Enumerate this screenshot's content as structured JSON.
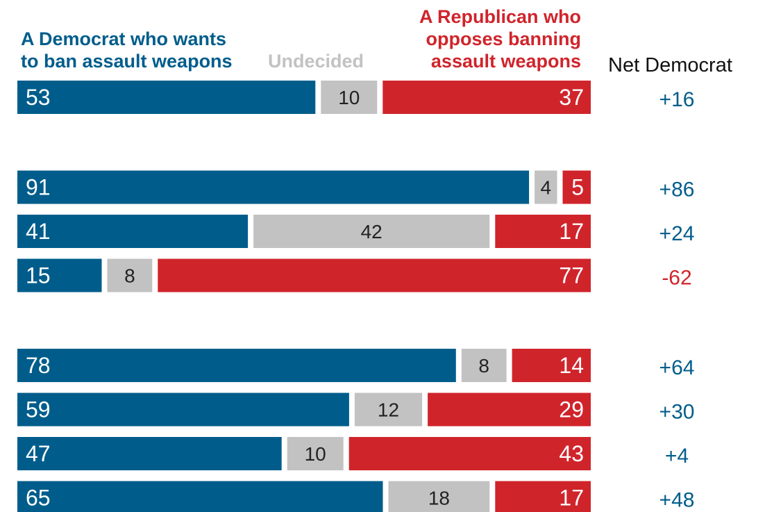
{
  "header": {
    "democrat": "A Democrat who wants\nto ban assault weapons",
    "undecided": "Undecided",
    "republican": "A Republican who\nopposes banning\nassault weapons",
    "net": "Net Democrat"
  },
  "colors": {
    "democrat": "#005d8b",
    "undecided": "#c2c2c2",
    "republican": "#d0242b"
  },
  "chart_data": {
    "type": "bar",
    "stacked": true,
    "orientation": "horizontal",
    "groups": [
      {
        "rows": [
          {
            "dem": 53,
            "und": 10,
            "rep": 37,
            "net": "+16"
          }
        ]
      },
      {
        "rows": [
          {
            "dem": 91,
            "und": 4,
            "rep": 5,
            "net": "+86"
          },
          {
            "dem": 41,
            "und": 42,
            "rep": 17,
            "net": "+24"
          },
          {
            "dem": 15,
            "und": 8,
            "rep": 77,
            "net": "-62"
          }
        ]
      },
      {
        "rows": [
          {
            "dem": 78,
            "und": 8,
            "rep": 14,
            "net": "+64"
          },
          {
            "dem": 59,
            "und": 12,
            "rep": 29,
            "net": "+30"
          },
          {
            "dem": 47,
            "und": 10,
            "rep": 43,
            "net": "+4"
          },
          {
            "dem": 65,
            "und": 18,
            "rep": 17,
            "net": "+48"
          }
        ]
      }
    ],
    "series": [
      {
        "name": "A Democrat who wants to ban assault weapons",
        "key": "dem"
      },
      {
        "name": "Undecided",
        "key": "und"
      },
      {
        "name": "A Republican who opposes banning assault weapons",
        "key": "rep"
      }
    ],
    "xlim": [
      0,
      100
    ]
  }
}
